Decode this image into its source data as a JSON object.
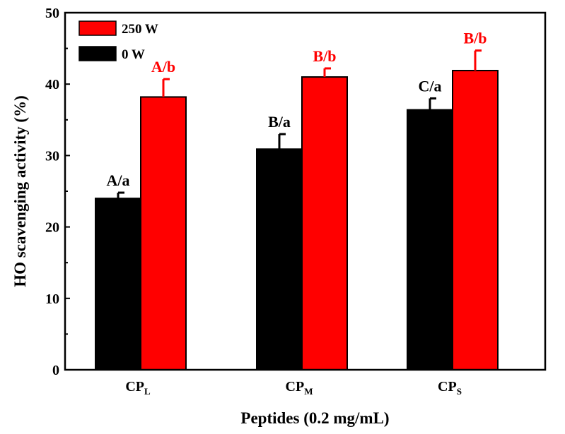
{
  "chart_data": {
    "type": "bar",
    "categories": [
      {
        "base": "CP",
        "sub": "L"
      },
      {
        "base": "CP",
        "sub": "M"
      },
      {
        "base": "CP",
        "sub": "S"
      }
    ],
    "series": [
      {
        "name": "0 W",
        "color": "#000000",
        "values": [
          24.0,
          30.9,
          36.4
        ],
        "errors": [
          0.8,
          2.1,
          1.6
        ],
        "labels": [
          "A/a",
          "B/a",
          "C/a"
        ],
        "label_color": "#000000"
      },
      {
        "name": "250 W",
        "color": "#ff0000",
        "values": [
          38.2,
          41.0,
          41.9
        ],
        "errors": [
          2.5,
          1.2,
          2.8
        ],
        "labels": [
          "A/b",
          "B/b",
          "B/b"
        ],
        "label_color": "#ff0000"
      }
    ],
    "legend_order": [
      "250 W",
      "0 W"
    ],
    "legend_position": "top-left",
    "xlabel": "Peptides (0.2 mg/mL)",
    "ylabel": "HO  scavenging activity (%)",
    "ylim": [
      0,
      50
    ],
    "yticks": [
      0,
      10,
      20,
      30,
      40,
      50
    ],
    "grid": false
  }
}
